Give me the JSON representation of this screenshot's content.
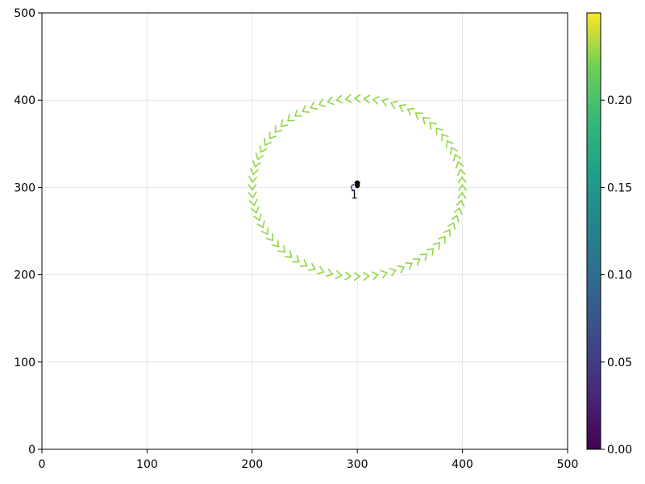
{
  "chart_data": {
    "type": "scatter",
    "title": "",
    "xlabel": "",
    "ylabel": "",
    "xlim": [
      0,
      500
    ],
    "ylim": [
      0,
      500
    ],
    "xticks": [
      "0",
      "100",
      "200",
      "300",
      "400",
      "500"
    ],
    "yticks": [
      "0",
      "100",
      "200",
      "300",
      "400",
      "500"
    ],
    "grid": true,
    "colormap": "viridis",
    "colorbar": {
      "range": [
        0,
        0.25
      ],
      "ticks": [
        "0.00",
        "0.05",
        "0.10",
        "0.15",
        "0.20"
      ],
      "placement": "right"
    },
    "series": [
      {
        "marker": "arrowhead",
        "color_value": 0.2,
        "color": "#8fd744",
        "center": [
          300,
          300
        ],
        "radius_x": 100,
        "radius_y": 102,
        "count": 72
      }
    ],
    "annotations": [
      {
        "text": "1",
        "x": 297,
        "y": 292
      }
    ],
    "center_marks": [
      {
        "kind": "tail",
        "x": 294,
        "y": 300,
        "color": "#3b528b"
      },
      {
        "kind": "blob",
        "x": 300,
        "y": 303,
        "color": "#000000"
      }
    ]
  }
}
